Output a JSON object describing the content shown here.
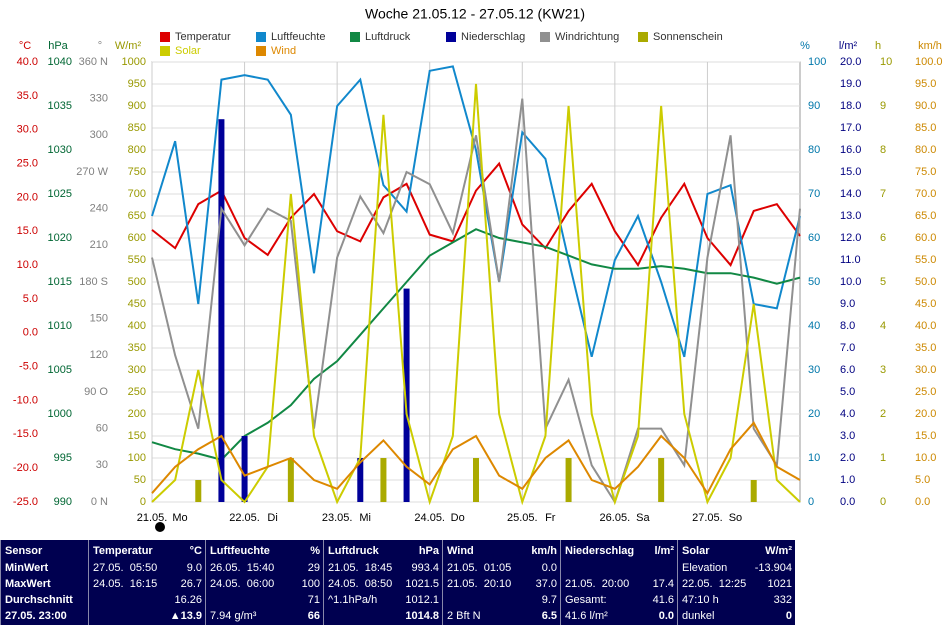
{
  "chart_data": {
    "type": "line",
    "title": "Woche 21.05.12 - 27.05.12 (KW21)",
    "xlim": [
      0,
      168
    ],
    "xticks": [
      {
        "value": 0,
        "label": "21.05."
      },
      {
        "value": 24,
        "label": "22.05."
      },
      {
        "value": 48,
        "label": "23.05."
      },
      {
        "value": 72,
        "label": "24.05."
      },
      {
        "value": 96,
        "label": "25.05."
      },
      {
        "value": 120,
        "label": "26.05."
      },
      {
        "value": 144,
        "label": "27.05."
      }
    ],
    "weekdays": [
      "Mo",
      "Di",
      "Mi",
      "Do",
      "Fr",
      "Sa",
      "So"
    ],
    "grid": true,
    "axes": [
      {
        "unit": "°C",
        "color": "#cc0000",
        "lim": [
          -25,
          40
        ],
        "ticks": [
          {
            "value": 40,
            "label": "40.0"
          },
          {
            "value": 35,
            "label": "35.0"
          },
          {
            "value": 30,
            "label": "30.0"
          },
          {
            "value": 25,
            "label": "25.0"
          },
          {
            "value": 20,
            "label": "20.0"
          },
          {
            "value": 15,
            "label": "15.0"
          },
          {
            "value": 10,
            "label": "10.0"
          },
          {
            "value": 5,
            "label": "5.0"
          },
          {
            "value": 0,
            "label": "0.0"
          },
          {
            "value": -5,
            "label": "-5.0"
          },
          {
            "value": -10,
            "label": "-10.0"
          },
          {
            "value": -15,
            "label": "-15.0"
          },
          {
            "value": -20,
            "label": "-20.0"
          },
          {
            "value": -25,
            "label": "-25.0"
          }
        ]
      },
      {
        "unit": "hPa",
        "color": "#006633",
        "lim": [
          990,
          1040
        ],
        "ticks": [
          990,
          995,
          1000,
          1005,
          1010,
          1015,
          1020,
          1025,
          1030,
          1035,
          1040
        ]
      },
      {
        "unit": "°",
        "color": "#808080",
        "lim": [
          0,
          360
        ],
        "ticks": [
          {
            "value": 360,
            "label": "360 N"
          },
          330,
          300,
          {
            "value": 270,
            "label": "270 W"
          },
          240,
          210,
          {
            "value": 180,
            "label": "180 S"
          },
          150,
          120,
          {
            "value": 90,
            "label": "90 O"
          },
          60,
          30,
          {
            "value": 0,
            "label": "0 N"
          }
        ]
      },
      {
        "unit": "W/m²",
        "color": "#999900",
        "lim": [
          0,
          1000
        ],
        "ticks": [
          0,
          50,
          100,
          150,
          200,
          250,
          300,
          350,
          400,
          450,
          500,
          550,
          600,
          650,
          700,
          750,
          800,
          850,
          900,
          950,
          1000
        ]
      },
      {
        "unit": "%",
        "color": "#0077aa",
        "lim": [
          0,
          100
        ],
        "ticks": [
          0,
          10,
          20,
          30,
          40,
          50,
          60,
          70,
          80,
          90,
          100
        ]
      },
      {
        "unit": "l/m²",
        "color": "#000080",
        "lim": [
          0,
          20
        ],
        "ticks": [
          {
            "value": 0,
            "label": "0.0"
          },
          {
            "value": 1,
            "label": "1.0"
          },
          {
            "value": 2,
            "label": "2.0"
          },
          {
            "value": 3,
            "label": "3.0"
          },
          {
            "value": 4,
            "label": "4.0"
          },
          {
            "value": 5,
            "label": "5.0"
          },
          {
            "value": 6,
            "label": "6.0"
          },
          {
            "value": 7,
            "label": "7.0"
          },
          {
            "value": 8,
            "label": "8.0"
          },
          {
            "value": 9,
            "label": "9.0"
          },
          {
            "value": 10,
            "label": "10.0"
          },
          {
            "value": 11,
            "label": "11.0"
          },
          {
            "value": 12,
            "label": "12.0"
          },
          {
            "value": 13,
            "label": "13.0"
          },
          {
            "value": 14,
            "label": "14.0"
          },
          {
            "value": 15,
            "label": "15.0"
          },
          {
            "value": 16,
            "label": "16.0"
          },
          {
            "value": 17,
            "label": "17.0"
          },
          {
            "value": 18,
            "label": "18.0"
          },
          {
            "value": 19,
            "label": "19.0"
          },
          {
            "value": 20,
            "label": "20.0"
          }
        ]
      },
      {
        "unit": "h",
        "color": "#999900",
        "lim": [
          0,
          10
        ],
        "ticks": [
          0,
          1,
          2,
          3,
          4,
          5,
          6,
          7,
          8,
          9,
          10
        ]
      },
      {
        "unit": "km/h",
        "color": "#cc8800",
        "lim": [
          0,
          100
        ],
        "ticks": [
          {
            "value": 0,
            "label": "0.0"
          },
          {
            "value": 5,
            "label": "5.0"
          },
          {
            "value": 10,
            "label": "10.0"
          },
          {
            "value": 15,
            "label": "15.0"
          },
          {
            "value": 20,
            "label": "20.0"
          },
          {
            "value": 25,
            "label": "25.0"
          },
          {
            "value": 30,
            "label": "30.0"
          },
          {
            "value": 35,
            "label": "35.0"
          },
          {
            "value": 40,
            "label": "40.0"
          },
          {
            "value": 45,
            "label": "45.0"
          },
          {
            "value": 50,
            "label": "50.0"
          },
          {
            "value": 55,
            "label": "55.0"
          },
          {
            "value": 60,
            "label": "60.0"
          },
          {
            "value": 65,
            "label": "65.0"
          },
          {
            "value": 70,
            "label": "70.0"
          },
          {
            "value": 75,
            "label": "75.0"
          },
          {
            "value": 80,
            "label": "80.0"
          },
          {
            "value": 85,
            "label": "85.0"
          },
          {
            "value": 90,
            "label": "90.0"
          },
          {
            "value": 95,
            "label": "95.0"
          },
          {
            "value": 100,
            "label": "100.0"
          }
        ]
      }
    ],
    "x": [
      0,
      6,
      12,
      18,
      24,
      30,
      36,
      42,
      48,
      54,
      60,
      66,
      72,
      78,
      84,
      90,
      96,
      102,
      108,
      114,
      120,
      126,
      132,
      138,
      144,
      150,
      156,
      162,
      168
    ],
    "series": [
      {
        "name": "Temperatur",
        "color": "#dd0000",
        "axis": 0,
        "style": "line",
        "values": [
          15.2,
          12.5,
          19,
          21,
          14,
          11.5,
          17,
          20.5,
          15,
          13.5,
          20,
          22,
          14.5,
          13.5,
          21,
          25,
          16,
          12.5,
          18,
          22,
          15,
          10,
          17,
          22,
          14,
          10,
          18,
          19,
          14.3
        ]
      },
      {
        "name": "Luftfeuchte",
        "color": "#1188cc",
        "axis": 4,
        "style": "line",
        "values": [
          65,
          82,
          45,
          96,
          97,
          96,
          88,
          52,
          90,
          96,
          72,
          66,
          98,
          99,
          80,
          50,
          84,
          78,
          55,
          33,
          55,
          65,
          50,
          33,
          70,
          72,
          45,
          44,
          65
        ]
      },
      {
        "name": "Luftdruck",
        "color": "#118844",
        "axis": 1,
        "style": "line",
        "values": [
          996.8,
          996,
          995.5,
          994.8,
          997.5,
          999,
          1001,
          1004,
          1006,
          1009,
          1012,
          1015,
          1018,
          1019.5,
          1021,
          1020,
          1019.5,
          1019,
          1018,
          1017,
          1016.5,
          1016.5,
          1016.8,
          1016.5,
          1016,
          1016,
          1015.5,
          1014.8,
          1015.5
        ]
      },
      {
        "name": "Niederschlag",
        "color": "#000099",
        "axis": 5,
        "style": "bar",
        "values": [
          0,
          0,
          0,
          17.4,
          3,
          0,
          0,
          0,
          0,
          2,
          0,
          9.7,
          0,
          0,
          0,
          0,
          0,
          0,
          0,
          0,
          0,
          0,
          0,
          0,
          0,
          0,
          0,
          0,
          0
        ]
      },
      {
        "name": "Windrichtung",
        "color": "#909090",
        "axis": 2,
        "style": "line",
        "values": [
          200,
          120,
          60,
          240,
          210,
          240,
          230,
          60,
          200,
          250,
          220,
          270,
          260,
          220,
          300,
          180,
          330,
          60,
          100,
          30,
          0,
          60,
          60,
          30,
          200,
          300,
          60,
          30,
          240
        ]
      },
      {
        "name": "Sonnenschein",
        "color": "#aaaa00",
        "axis": 6,
        "style": "bar",
        "values": [
          0,
          0,
          0.5,
          0,
          0,
          0,
          1,
          0,
          0,
          0,
          1,
          0,
          0,
          0,
          1,
          0,
          0,
          0,
          1,
          0,
          0,
          0,
          1,
          0,
          0,
          0,
          0.5,
          0,
          0
        ]
      },
      {
        "name": "Solar",
        "color": "#cccc00",
        "axis": 3,
        "style": "line",
        "values": [
          0,
          50,
          300,
          50,
          0,
          80,
          700,
          150,
          0,
          100,
          880,
          200,
          0,
          150,
          950,
          200,
          0,
          150,
          900,
          200,
          0,
          150,
          900,
          200,
          0,
          100,
          450,
          50,
          0
        ]
      },
      {
        "name": "Wind",
        "color": "#dd8800",
        "axis": 7,
        "style": "line",
        "values": [
          2,
          8,
          12,
          15,
          6,
          8,
          10,
          5,
          3,
          9,
          14,
          8,
          4,
          12,
          15,
          6,
          3,
          10,
          14,
          5,
          3,
          8,
          15,
          10,
          2,
          12,
          18,
          8,
          5
        ]
      }
    ]
  },
  "table": {
    "columns": [
      {
        "header": "Sensor",
        "rows": [
          {
            "left": "MinWert"
          },
          {
            "left": "MaxWert"
          },
          {
            "left": "Durchschnitt"
          },
          {
            "left": "27.05. 23:00"
          }
        ]
      },
      {
        "header": "Temperatur",
        "unit": "°C",
        "rows": [
          {
            "left": "27.05.  05:50",
            "right": "9.0"
          },
          {
            "left": "24.05.  16:15",
            "right": "26.7"
          },
          {
            "right": "16.26"
          },
          {
            "right": "▲13.9"
          }
        ]
      },
      {
        "header": "Luftfeuchte",
        "unit": "%",
        "rows": [
          {
            "left": "26.05.  15:40",
            "right": "29"
          },
          {
            "left": "24.05.  06:00",
            "right": "100"
          },
          {
            "right": "71"
          },
          {
            "left": "7.94 g/m³",
            "right": "66"
          }
        ]
      },
      {
        "header": "Luftdruck",
        "unit": "hPa",
        "rows": [
          {
            "left": "21.05.  18:45",
            "right": "993.4"
          },
          {
            "left": "24.05.  08:50",
            "right": "1021.5"
          },
          {
            "left": "^1.1hPa/h",
            "right": "1012.1"
          },
          {
            "right": "1014.8"
          }
        ]
      },
      {
        "header": "Wind",
        "unit": "km/h",
        "rows": [
          {
            "left": "21.05.  01:05",
            "right": "0.0"
          },
          {
            "left": "21.05.  20:10",
            "right": "37.0"
          },
          {
            "right": "9.7"
          },
          {
            "left": "2 Bft N",
            "right": "6.5"
          }
        ]
      },
      {
        "header": "Niederschlag",
        "unit": "l/m²",
        "rows": [
          {},
          {
            "left": "21.05.  20:00",
            "right": "17.4"
          },
          {
            "left": "Gesamt:",
            "right": "41.6"
          },
          {
            "left": "41.6 l/m²",
            "right": "0.0"
          }
        ]
      },
      {
        "header": "Solar",
        "unit": "W/m²",
        "rows": [
          {
            "left": "Elevation",
            "right": "-13.904"
          },
          {
            "left": "22.05.  12:25",
            "right": "1021"
          },
          {
            "left": "47:10 h",
            "right": "332"
          },
          {
            "left": "dunkel",
            "right": "0"
          }
        ]
      }
    ]
  }
}
